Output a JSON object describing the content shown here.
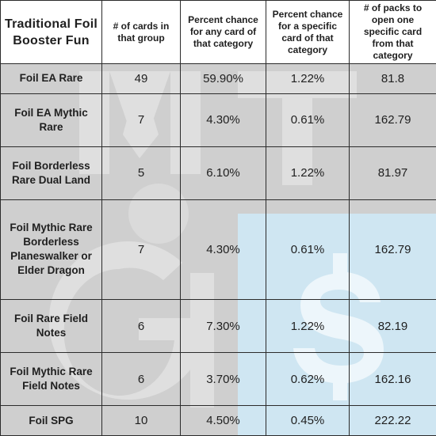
{
  "table": {
    "headers": [
      "Traditional Foil Booster Fun",
      "# of cards in that group",
      "Percent chance for any card of that category",
      "Percent chance for a specific card of that category",
      "# of packs to open one specific card from that category"
    ],
    "rows": [
      [
        "Foil EA Rare",
        "49",
        "59.90%",
        "1.22%",
        "81.8"
      ],
      [
        "Foil EA Mythic Rare",
        "7",
        "4.30%",
        "0.61%",
        "162.79"
      ],
      [
        "Foil Borderless Rare Dual Land",
        "5",
        "6.10%",
        "1.22%",
        "81.97"
      ],
      [
        "Foil Mythic Rare Borderless Planeswalker or Elder Dragon",
        "7",
        "4.30%",
        "0.61%",
        "162.79"
      ],
      [
        "Foil Rare Field Notes",
        "6",
        "7.30%",
        "1.22%",
        "82.19"
      ],
      [
        "Foil Mythic Rare Field Notes",
        "6",
        "3.70%",
        "0.62%",
        "162.16"
      ],
      [
        "Foil SPG",
        "10",
        "4.50%",
        "0.45%",
        "222.22"
      ]
    ]
  },
  "colors": {
    "cell_bg": "#cfcfcf",
    "header_bg": "#ffffff",
    "border": "#2b2b2b",
    "watermark_light": "#e9e9e9",
    "watermark_blue": "#cfe6f2"
  }
}
